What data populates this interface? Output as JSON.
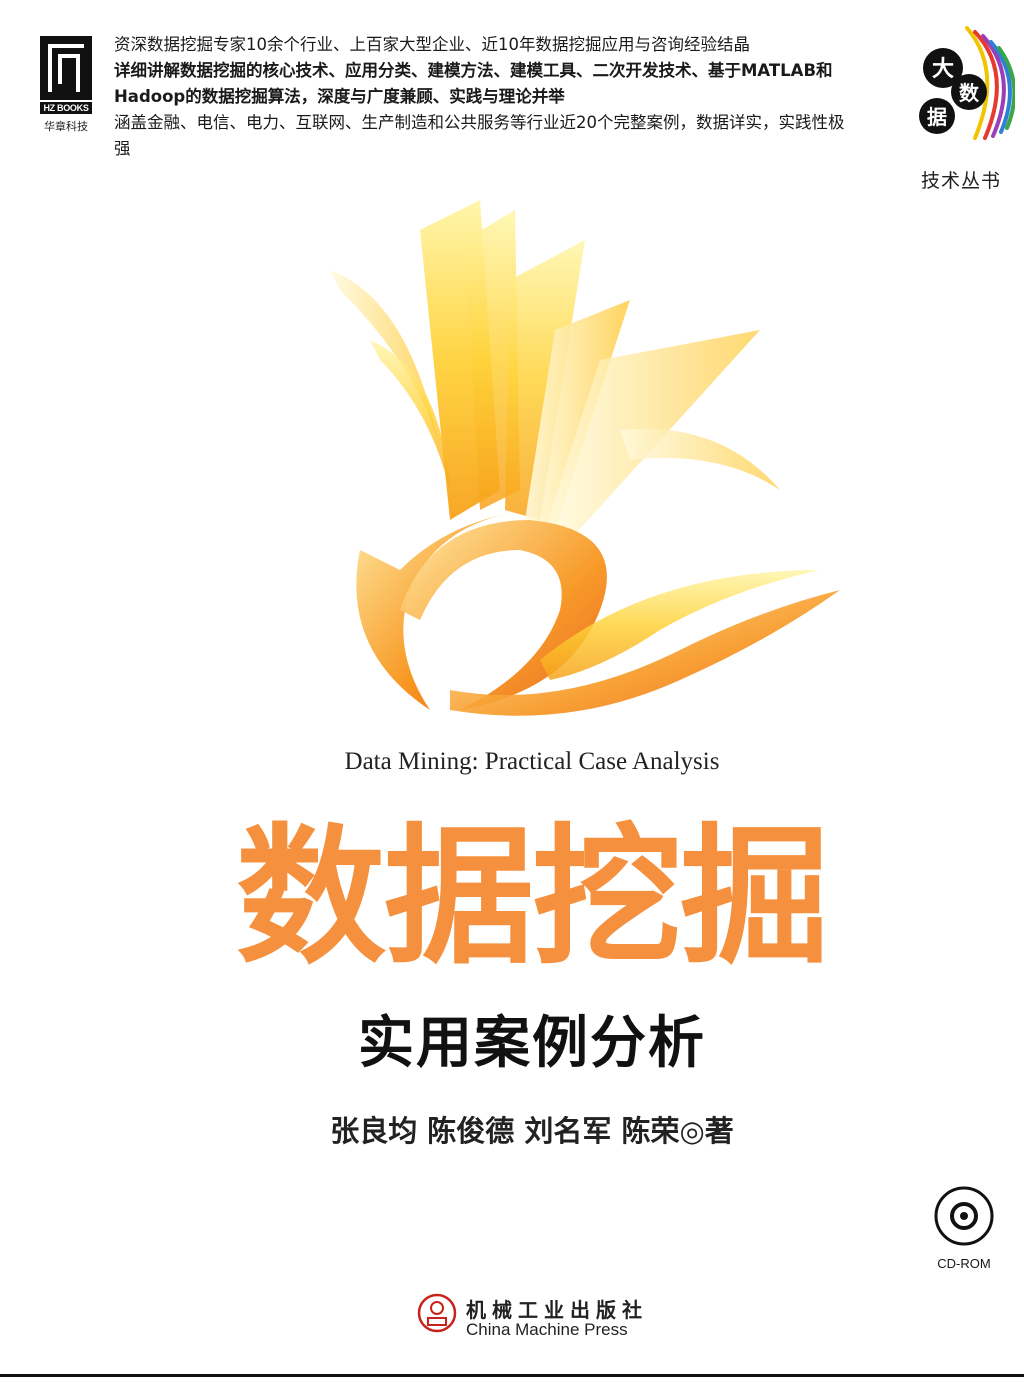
{
  "publisher_logo": {
    "mark_text": "HZ BOOKS",
    "cn_text": "华章科技"
  },
  "blurb": [
    {
      "text": "资深数据挖掘专家10余个行业、上百家大型企业、近10年数据挖掘应用与咨询经验结晶",
      "bold": false
    },
    {
      "text": "详细讲解数据挖掘的核心技术、应用分类、建模方法、建模工具、二次开发技术、基于MATLAB和Hadoop的数据挖掘算法，深度与广度兼顾、实践与理论并举",
      "bold": true
    },
    {
      "text": "涵盖金融、电信、电力、互联网、生产制造和公共服务等行业近20个完整案例，数据详实，实践性极强",
      "bold": false
    }
  ],
  "series": {
    "char1": "大",
    "char2": "数",
    "char3": "据",
    "label": "技术丛书",
    "colors": [
      "#f0c400",
      "#e63a2f",
      "#9b3fb8",
      "#2f7fd6",
      "#3aa64a"
    ]
  },
  "book": {
    "english_title": "Data Mining: Practical Case Analysis",
    "title": "数据挖掘",
    "subtitle": "实用案例分析",
    "authors": "张良均 陈俊德 刘名军 陈荣◎著",
    "title_color": "#f5913e"
  },
  "cd": {
    "label": "CD-ROM"
  },
  "press": {
    "cn": "机械工业出版社",
    "en": "China Machine Press"
  }
}
